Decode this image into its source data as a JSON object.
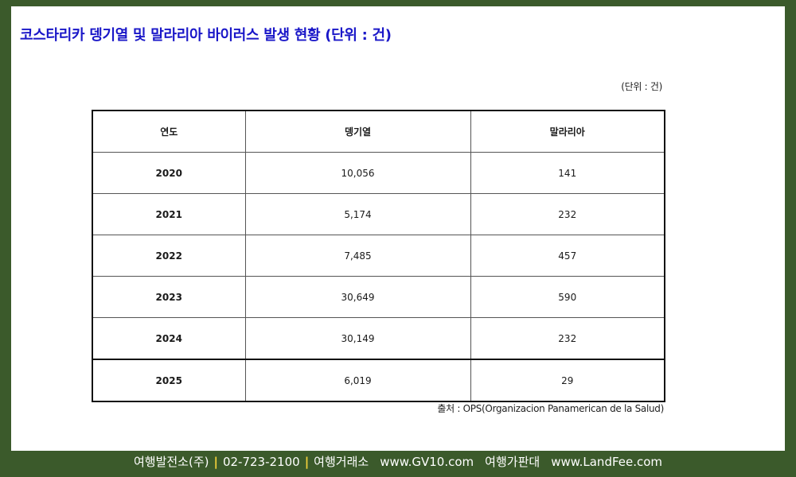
{
  "title": "코스타리카 뎅기열 및 말라리아 바이러스 발생 현황 (단위 : 건)",
  "unit_note": "(단위 : 건)",
  "table": {
    "headers": [
      "연도",
      "뎅기열",
      "말라리아"
    ],
    "rows": [
      {
        "year": "2020",
        "dengue": "10,056",
        "malaria": "141"
      },
      {
        "year": "2021",
        "dengue": "5,174",
        "malaria": "232"
      },
      {
        "year": "2022",
        "dengue": "7,485",
        "malaria": "457"
      },
      {
        "year": "2023",
        "dengue": "30,649",
        "malaria": "590"
      },
      {
        "year": "2024",
        "dengue": "30,149",
        "malaria": "232"
      },
      {
        "year": "2025",
        "dengue": "6,019",
        "malaria": "29"
      }
    ]
  },
  "source": "출처 : OPS(Organizacion Panamerican de la Salud)",
  "footer": {
    "company": "여행발전소(주)",
    "phone": "02-723-2100",
    "site1_label": "여행거래소",
    "site1_url": "www.GV10.com",
    "site2_label": "여행가판대",
    "site2_url": "www.LandFee.com",
    "separator": "|"
  },
  "colors": {
    "frame": "#3b5a2b",
    "title": "#1a17c8",
    "separator": "#f4d23a"
  }
}
